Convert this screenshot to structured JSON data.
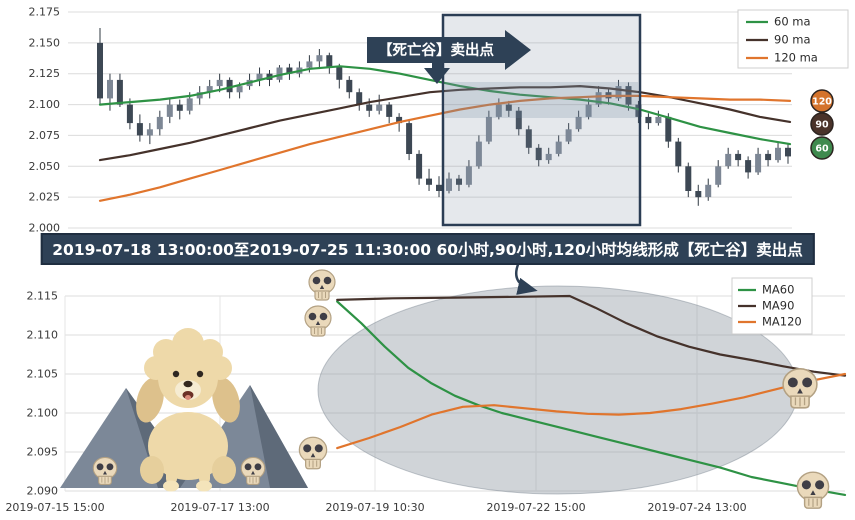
{
  "ui": {
    "annotation_label": "【死亡谷】卖出点",
    "banner_text": "2019-07-18 13:00:00至2019-07-25 11:30:00 60小时,90小时,120小时均线形成【死亡谷】卖出点",
    "badges": [
      {
        "label": "120",
        "color": "#d4732c"
      },
      {
        "label": "90",
        "color": "#4a332a"
      },
      {
        "label": "60",
        "color": "#3f8a4e"
      }
    ],
    "colors": {
      "annotation": "#2e4156",
      "grid": "#dcdcdc",
      "grid_vertical": "#e4e4e4",
      "highlight_box_border": "#2b3d54",
      "ellipse_fill": "#969fa8"
    }
  },
  "chart_data": [
    {
      "type": "candlestick",
      "title": "",
      "ylim": [
        2.0,
        2.175
      ],
      "y_tick_labels": [
        "2.175",
        "2.150",
        "2.125",
        "2.100",
        "2.075",
        "2.050",
        "2.025",
        "2.000"
      ],
      "legend_position": "top-right",
      "grid": true,
      "candle_up_color": "#7d8795",
      "candle_down_color": "#3d4854",
      "wick_color": "#2f3842",
      "series": [
        {
          "name": "60 ma",
          "color": "#2e9245",
          "values": [
            2.1,
            2.102,
            2.104,
            2.107,
            2.112,
            2.118,
            2.124,
            2.129,
            2.131,
            2.129,
            2.125,
            2.12,
            2.115,
            2.111,
            2.108,
            2.106,
            2.104,
            2.101,
            2.096,
            2.089,
            2.082,
            2.077,
            2.072,
            2.068
          ]
        },
        {
          "name": "90 ma",
          "color": "#45322b",
          "values": [
            2.055,
            2.059,
            2.064,
            2.069,
            2.075,
            2.081,
            2.087,
            2.092,
            2.097,
            2.102,
            2.106,
            2.11,
            2.112,
            2.113,
            2.114,
            2.114,
            2.115,
            2.113,
            2.11,
            2.106,
            2.101,
            2.096,
            2.09,
            2.086
          ]
        },
        {
          "name": "120 ma",
          "color": "#e0752d",
          "values": [
            2.022,
            2.027,
            2.033,
            2.04,
            2.047,
            2.054,
            2.061,
            2.068,
            2.074,
            2.08,
            2.086,
            2.091,
            2.096,
            2.1,
            2.103,
            2.105,
            2.106,
            2.107,
            2.107,
            2.106,
            2.105,
            2.104,
            2.104,
            2.103
          ]
        }
      ],
      "candles_ohlc": [
        [
          2.15,
          2.162,
          2.1,
          2.105
        ],
        [
          2.105,
          2.125,
          2.095,
          2.12
        ],
        [
          2.12,
          2.125,
          2.098,
          2.1
        ],
        [
          2.1,
          2.105,
          2.08,
          2.085
        ],
        [
          2.085,
          2.092,
          2.07,
          2.075
        ],
        [
          2.075,
          2.085,
          2.068,
          2.08
        ],
        [
          2.08,
          2.095,
          2.075,
          2.09
        ],
        [
          2.09,
          2.105,
          2.085,
          2.1
        ],
        [
          2.1,
          2.104,
          2.088,
          2.095
        ],
        [
          2.095,
          2.11,
          2.092,
          2.105
        ],
        [
          2.105,
          2.115,
          2.1,
          2.11
        ],
        [
          2.11,
          2.12,
          2.105,
          2.115
        ],
        [
          2.115,
          2.125,
          2.11,
          2.12
        ],
        [
          2.12,
          2.122,
          2.105,
          2.11
        ],
        [
          2.11,
          2.118,
          2.105,
          2.115
        ],
        [
          2.115,
          2.125,
          2.112,
          2.12
        ],
        [
          2.12,
          2.13,
          2.115,
          2.125
        ],
        [
          2.125,
          2.128,
          2.115,
          2.12
        ],
        [
          2.12,
          2.132,
          2.118,
          2.13
        ],
        [
          2.13,
          2.133,
          2.12,
          2.125
        ],
        [
          2.125,
          2.135,
          2.122,
          2.13
        ],
        [
          2.13,
          2.14,
          2.126,
          2.135
        ],
        [
          2.135,
          2.145,
          2.13,
          2.14
        ],
        [
          2.14,
          2.142,
          2.125,
          2.13
        ],
        [
          2.13,
          2.133,
          2.113,
          2.12
        ],
        [
          2.12,
          2.123,
          2.105,
          2.11
        ],
        [
          2.11,
          2.113,
          2.095,
          2.1
        ],
        [
          2.1,
          2.105,
          2.09,
          2.095
        ],
        [
          2.095,
          2.108,
          2.092,
          2.1
        ],
        [
          2.1,
          2.102,
          2.085,
          2.09
        ],
        [
          2.09,
          2.093,
          2.078,
          2.085
        ],
        [
          2.085,
          2.088,
          2.055,
          2.06
        ],
        [
          2.06,
          2.063,
          2.035,
          2.04
        ],
        [
          2.04,
          2.048,
          2.03,
          2.035
        ],
        [
          2.035,
          2.042,
          2.025,
          2.03
        ],
        [
          2.03,
          2.045,
          2.028,
          2.04
        ],
        [
          2.04,
          2.043,
          2.03,
          2.035
        ],
        [
          2.035,
          2.055,
          2.033,
          2.05
        ],
        [
          2.05,
          2.075,
          2.048,
          2.07
        ],
        [
          2.07,
          2.095,
          2.068,
          2.09
        ],
        [
          2.09,
          2.105,
          2.088,
          2.1
        ],
        [
          2.1,
          2.103,
          2.09,
          2.095
        ],
        [
          2.095,
          2.098,
          2.075,
          2.08
        ],
        [
          2.08,
          2.083,
          2.06,
          2.065
        ],
        [
          2.065,
          2.068,
          2.05,
          2.055
        ],
        [
          2.055,
          2.065,
          2.052,
          2.06
        ],
        [
          2.06,
          2.075,
          2.058,
          2.07
        ],
        [
          2.07,
          2.085,
          2.068,
          2.08
        ],
        [
          2.08,
          2.095,
          2.078,
          2.09
        ],
        [
          2.09,
          2.105,
          2.088,
          2.1
        ],
        [
          2.1,
          2.115,
          2.098,
          2.11
        ],
        [
          2.11,
          2.113,
          2.1,
          2.105
        ],
        [
          2.105,
          2.12,
          2.103,
          2.115
        ],
        [
          2.115,
          2.118,
          2.095,
          2.1
        ],
        [
          2.1,
          2.103,
          2.085,
          2.09
        ],
        [
          2.09,
          2.093,
          2.08,
          2.085
        ],
        [
          2.085,
          2.095,
          2.083,
          2.09
        ],
        [
          2.09,
          2.093,
          2.065,
          2.07
        ],
        [
          2.07,
          2.073,
          2.045,
          2.05
        ],
        [
          2.05,
          2.053,
          2.025,
          2.03
        ],
        [
          2.03,
          2.035,
          2.018,
          2.025
        ],
        [
          2.025,
          2.04,
          2.022,
          2.035
        ],
        [
          2.035,
          2.055,
          2.033,
          2.05
        ],
        [
          2.05,
          2.065,
          2.048,
          2.06
        ],
        [
          2.06,
          2.063,
          2.05,
          2.055
        ],
        [
          2.055,
          2.058,
          2.04,
          2.045
        ],
        [
          2.045,
          2.065,
          2.043,
          2.06
        ],
        [
          2.06,
          2.063,
          2.05,
          2.055
        ],
        [
          2.055,
          2.07,
          2.053,
          2.065
        ],
        [
          2.065,
          2.068,
          2.052,
          2.058
        ]
      ]
    },
    {
      "type": "line",
      "title": "",
      "ylim": [
        2.09,
        2.115
      ],
      "y_tick_labels": [
        "2.115",
        "2.110",
        "2.105",
        "2.100",
        "2.095",
        "2.090"
      ],
      "x_tick_labels": [
        "2019-07-15 15:00",
        "2019-07-17 13:00",
        "2019-07-19 10:30",
        "2019-07-22 15:00",
        "2019-07-24 13:00"
      ],
      "legend_position": "top-right",
      "grid": true,
      "series": [
        {
          "name": "MA60",
          "color": "#2e9245",
          "x": [
            0.349,
            0.38,
            0.41,
            0.44,
            0.47,
            0.5,
            0.53,
            0.56,
            0.6,
            0.64,
            0.68,
            0.72,
            0.76,
            0.8,
            0.84,
            0.88,
            0.92,
            0.96,
            1.0
          ],
          "y": [
            2.1143,
            2.1115,
            2.1085,
            2.1058,
            2.1038,
            2.1022,
            2.101,
            2.1,
            2.099,
            2.098,
            2.097,
            2.096,
            2.095,
            2.094,
            2.093,
            2.0918,
            2.091,
            2.0902,
            2.0895
          ]
        },
        {
          "name": "MA90",
          "color": "#45322b",
          "x": [
            0.349,
            0.42,
            0.5,
            0.58,
            0.647,
            0.68,
            0.72,
            0.76,
            0.8,
            0.84,
            0.88,
            0.92,
            0.96,
            1.0
          ],
          "y": [
            2.1145,
            2.1147,
            2.1148,
            2.1149,
            2.115,
            2.1135,
            2.1115,
            2.1098,
            2.1085,
            2.1075,
            2.1068,
            2.106,
            2.1053,
            2.1048
          ]
        },
        {
          "name": "MA120",
          "color": "#e0752d",
          "x": [
            0.349,
            0.39,
            0.43,
            0.47,
            0.51,
            0.55,
            0.59,
            0.63,
            0.67,
            0.71,
            0.75,
            0.79,
            0.83,
            0.87,
            0.91,
            0.95,
            1.0
          ],
          "y": [
            2.0955,
            2.0968,
            2.0982,
            2.0998,
            2.1008,
            2.101,
            2.1006,
            2.1002,
            2.0999,
            2.0998,
            2.1,
            2.1005,
            2.1012,
            2.102,
            2.103,
            2.104,
            2.105
          ]
        }
      ]
    }
  ]
}
